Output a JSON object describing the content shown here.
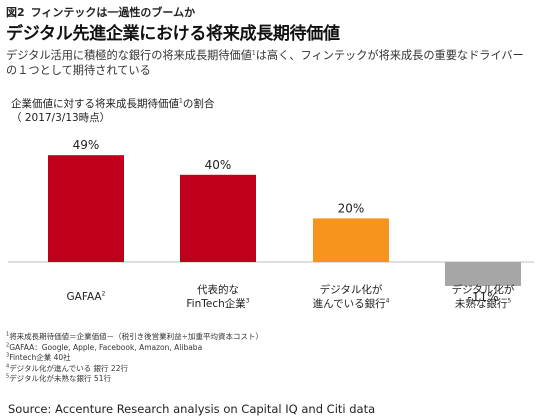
{
  "figure": {
    "number": "図2",
    "label": "フィンテックは一過性のブームか"
  },
  "title": "デジタル先進企業における将来成長期待価値",
  "subtitle": {
    "before": "デジタル活用に積極的な銀行の将来成長期待価値",
    "sup": "1",
    "after": "は高く、フィンテックが将来成長の重要なドライバーの１つとして期待されている"
  },
  "chart_title": {
    "before": "企業価値に対する将来成長期待価値",
    "sup": "1",
    "after": "の割合",
    "date": "（ 2017/3/13時点）"
  },
  "chart_data": {
    "type": "bar",
    "categories": [
      {
        "lines": [
          "GAFAA"
        ],
        "sup": "2"
      },
      {
        "lines": [
          "代表的な",
          "FinTech企業"
        ],
        "sup": "3"
      },
      {
        "lines": [
          "デジタル化が",
          "進んでいる銀行"
        ],
        "sup": "4"
      },
      {
        "lines": [
          "デジタル化が",
          "未熟な銀行"
        ],
        "sup": "5"
      }
    ],
    "values": [
      49,
      40,
      20,
      -11
    ],
    "value_labels": [
      "49%",
      "40%",
      "20%",
      "-11%"
    ],
    "colors": [
      "#c0001a",
      "#c0001a",
      "#f7941d",
      "#a6a6a6"
    ],
    "ylim": [
      -11,
      49
    ],
    "grid": false,
    "legend": "none"
  },
  "footnotes": [
    {
      "sup": "1",
      "text": "将来成長期待価値＝企業価値－（税引き後営業利益÷加重平均資本コスト）"
    },
    {
      "sup": "2",
      "text": "GAFAA：Google, Apple, Facebook, Amazon, Alibaba"
    },
    {
      "sup": "3",
      "text": "Fintech企業 40社"
    },
    {
      "sup": "4",
      "text": "デジタル化が進んでいる 銀行 22行"
    },
    {
      "sup": "5",
      "text": "デジタル化が未熟な銀行 51行"
    }
  ],
  "source": "Source: Accenture Research analysis on Capital IQ and Citi data"
}
